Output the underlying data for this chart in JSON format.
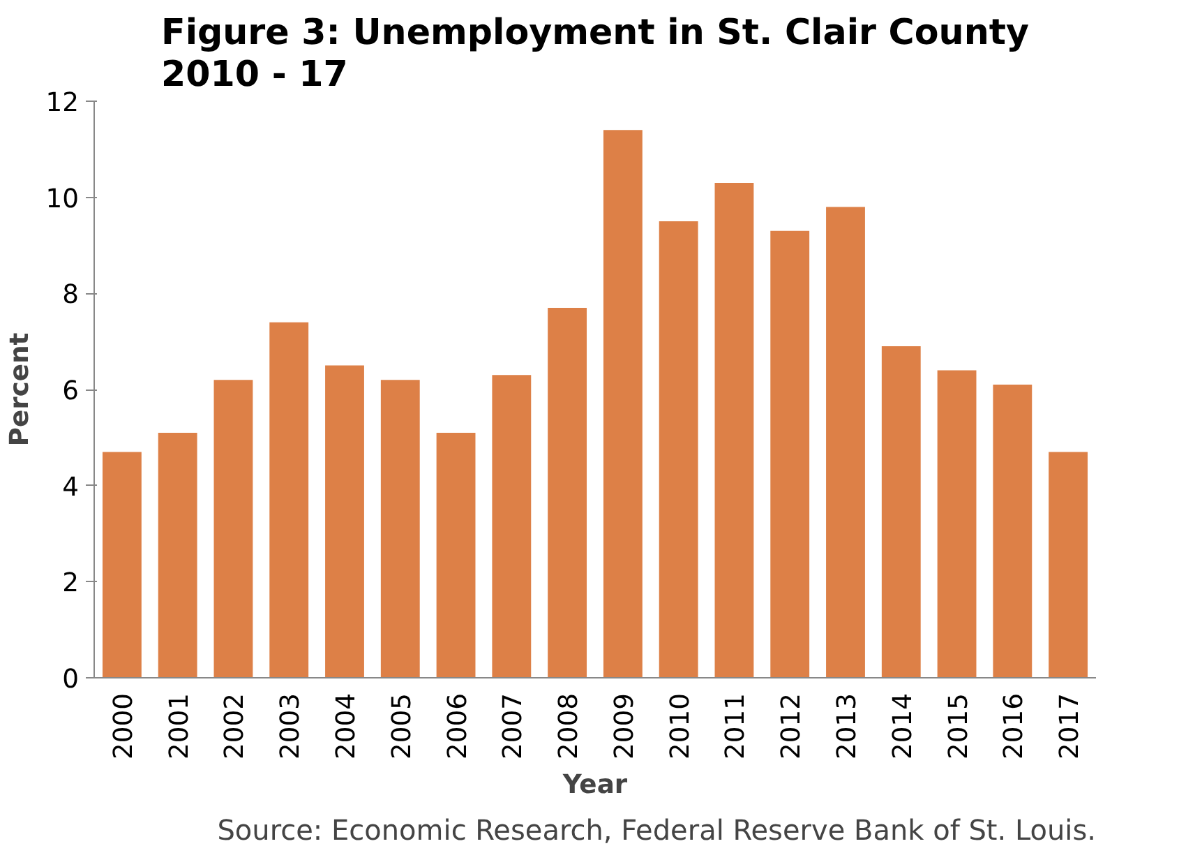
{
  "chart_data": {
    "type": "bar",
    "title": "Figure 3: Unemployment in St. Clair County\n2010 - 17",
    "xlabel": "Year",
    "ylabel": "Percent",
    "categories": [
      "2000",
      "2001",
      "2002",
      "2003",
      "2004",
      "2005",
      "2006",
      "2007",
      "2008",
      "2009",
      "2010",
      "2011",
      "2012",
      "2013",
      "2014",
      "2015",
      "2016",
      "2017"
    ],
    "values": [
      4.7,
      5.1,
      6.2,
      7.4,
      6.5,
      6.2,
      5.1,
      6.3,
      7.7,
      11.4,
      9.5,
      10.3,
      9.3,
      9.8,
      6.9,
      6.4,
      6.1,
      4.7
    ],
    "color": "#dd8047",
    "ylim": [
      0,
      12
    ],
    "yticks": [
      0,
      2,
      4,
      6,
      8,
      10,
      12
    ],
    "grid": false,
    "annotations": [
      "Source: Economic Research, Federal Reserve Bank of St. Louis."
    ]
  }
}
